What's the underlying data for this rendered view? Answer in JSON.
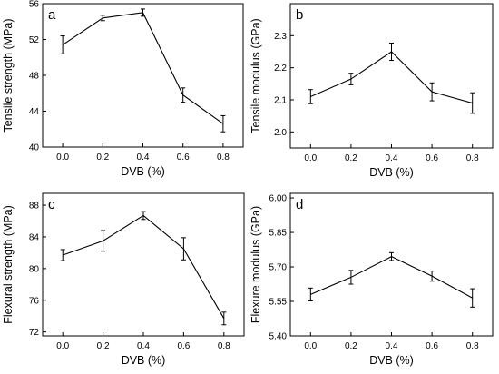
{
  "chart_data": [
    {
      "type": "line",
      "panel_label": "a",
      "xlabel": "DVB (%)",
      "ylabel": "Tensile strength (MPa)",
      "x": [
        0.0,
        0.2,
        0.4,
        0.6,
        0.8
      ],
      "x_tick_labels": [
        "0.0",
        "0.2",
        "0.4",
        "0.6",
        "0.8"
      ],
      "xlim": [
        -0.1,
        0.9
      ],
      "series": [
        {
          "values": [
            51.4,
            54.4,
            55.0,
            45.8,
            42.6
          ],
          "error": [
            1.0,
            0.3,
            0.4,
            0.8,
            0.9
          ]
        }
      ],
      "ylim": [
        40,
        56
      ],
      "y_ticks": [
        40,
        44,
        48,
        52,
        56
      ],
      "y_tick_labels": [
        "40",
        "44",
        "48",
        "52",
        "56"
      ],
      "grid": false
    },
    {
      "type": "line",
      "panel_label": "b",
      "xlabel": "DVB (%)",
      "ylabel": "Tensile modulus (GPa)",
      "x": [
        0.0,
        0.2,
        0.4,
        0.6,
        0.8
      ],
      "x_tick_labels": [
        "0.0",
        "0.2",
        "0.4",
        "0.6",
        "0.8"
      ],
      "xlim": [
        -0.1,
        0.9
      ],
      "series": [
        {
          "values": [
            2.11,
            2.165,
            2.25,
            2.125,
            2.09
          ],
          "error": [
            0.022,
            0.018,
            0.027,
            0.028,
            0.032
          ]
        }
      ],
      "ylim": [
        1.95,
        2.4
      ],
      "y_ticks": [
        2.0,
        2.1,
        2.2,
        2.3
      ],
      "y_tick_labels": [
        "2.0",
        "2.1",
        "2.2",
        "2.3"
      ],
      "grid": false
    },
    {
      "type": "line",
      "panel_label": "c",
      "xlabel": "DVB (%)",
      "ylabel": "Flexural strength (MPa)",
      "x": [
        0.0,
        0.2,
        0.4,
        0.6,
        0.8
      ],
      "x_tick_labels": [
        "0.0",
        "0.2",
        "0.4",
        "0.6",
        "0.8"
      ],
      "xlim": [
        -0.1,
        0.9
      ],
      "series": [
        {
          "values": [
            81.7,
            83.5,
            86.7,
            82.5,
            73.7
          ],
          "error": [
            0.7,
            1.3,
            0.5,
            1.4,
            0.8
          ]
        }
      ],
      "ylim": [
        71.5,
        89.5
      ],
      "y_ticks": [
        72,
        76,
        80,
        84,
        88
      ],
      "y_tick_labels": [
        "72",
        "76",
        "80",
        "84",
        "88"
      ],
      "grid": false
    },
    {
      "type": "line",
      "panel_label": "d",
      "xlabel": "DVB (%)",
      "ylabel": "Flexure modulus (GPa)",
      "x": [
        0.0,
        0.2,
        0.4,
        0.6,
        0.8
      ],
      "x_tick_labels": [
        "0.0",
        "0.2",
        "0.4",
        "0.6",
        "0.8"
      ],
      "xlim": [
        -0.1,
        0.9
      ],
      "series": [
        {
          "values": [
            5.58,
            5.655,
            5.745,
            5.66,
            5.565
          ],
          "error": [
            0.028,
            0.03,
            0.017,
            0.022,
            0.04
          ]
        }
      ],
      "ylim": [
        5.4,
        6.02
      ],
      "y_ticks": [
        5.4,
        5.55,
        5.7,
        5.85,
        6.0
      ],
      "y_tick_labels": [
        "5.40",
        "5.55",
        "5.70",
        "5.85",
        "6.00"
      ],
      "grid": false
    }
  ]
}
